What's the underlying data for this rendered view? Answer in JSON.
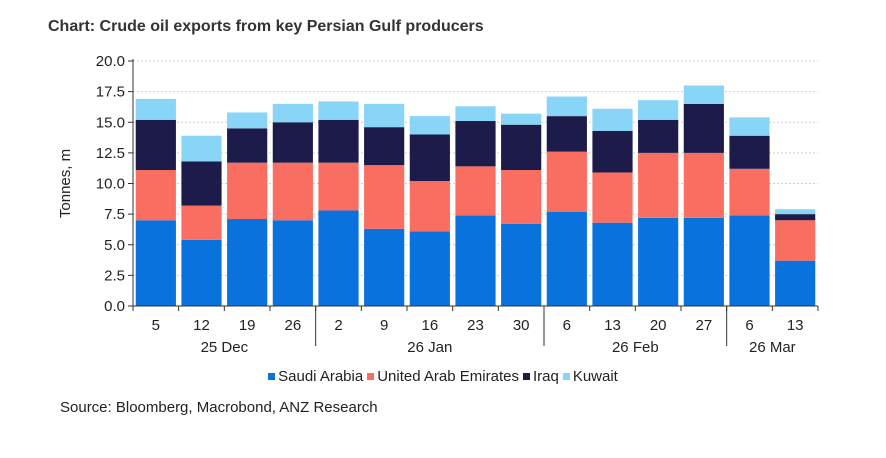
{
  "title": "Chart: Crude oil exports from key Persian Gulf producers",
  "source": "Source:  Bloomberg, Macrobond, ANZ Research",
  "colors": {
    "saudi": "#0a72dc",
    "uae": "#f96e60",
    "iraq": "#1d1b4a",
    "kuwait": "#88d5f7",
    "grid": "#cfcfcf",
    "axis": "#333333"
  },
  "chart_data": {
    "type": "bar",
    "stacked": true,
    "title": "Chart: Crude oil exports from key Persian Gulf producers",
    "ylabel": "Tonnes, m",
    "ylim": [
      0,
      20
    ],
    "yticks": [
      "0.0",
      "2.5",
      "5.0",
      "7.5",
      "10.0",
      "12.5",
      "15.0",
      "17.5",
      "20.0"
    ],
    "categories": [
      "5",
      "12",
      "19",
      "26",
      "2",
      "9",
      "16",
      "23",
      "30",
      "6",
      "13",
      "20",
      "27",
      "6",
      "13"
    ],
    "month_labels": [
      {
        "label": "25 Dec",
        "center_index": 1.5
      },
      {
        "label": "26 Jan",
        "center_index": 6
      },
      {
        "label": "26 Feb",
        "center_index": 10.5
      },
      {
        "label": "26 Mar",
        "center_index": 13.5
      }
    ],
    "month_separators_after": [
      3,
      8,
      12
    ],
    "series": [
      {
        "name": "Saudi Arabia",
        "color_key": "saudi",
        "values": [
          7.0,
          5.4,
          7.1,
          7.0,
          7.8,
          6.3,
          6.1,
          7.4,
          6.7,
          7.7,
          6.8,
          7.2,
          7.2,
          7.4,
          3.7
        ]
      },
      {
        "name": "United Arab Emirates",
        "color_key": "uae",
        "values": [
          4.1,
          2.8,
          4.6,
          4.7,
          3.9,
          5.2,
          4.1,
          4.0,
          4.4,
          4.9,
          4.1,
          5.3,
          5.3,
          3.8,
          3.3
        ]
      },
      {
        "name": "Iraq",
        "color_key": "iraq",
        "values": [
          4.1,
          3.6,
          2.8,
          3.3,
          3.5,
          3.1,
          3.8,
          3.7,
          3.7,
          2.9,
          3.4,
          2.7,
          4.0,
          2.7,
          0.5
        ]
      },
      {
        "name": "Kuwait",
        "color_key": "kuwait",
        "values": [
          1.7,
          2.1,
          1.3,
          1.5,
          1.5,
          1.9,
          1.5,
          1.2,
          0.9,
          1.6,
          1.8,
          1.6,
          1.5,
          1.5,
          0.4
        ]
      }
    ],
    "legend_position": "bottom",
    "grid": true
  }
}
